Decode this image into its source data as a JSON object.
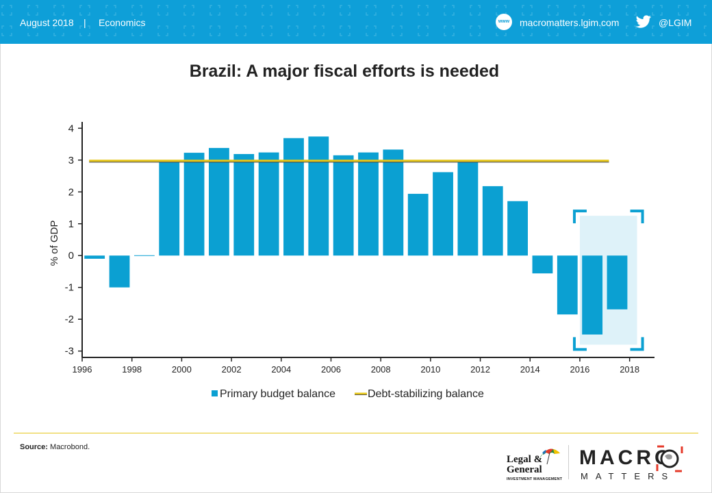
{
  "header": {
    "date": "August 2018",
    "separator": "|",
    "category": "Economics",
    "www_badge": "www",
    "website": "macromatters.lgim.com",
    "twitter_handle": "@LGIM",
    "background_color": "#0e9fd8"
  },
  "title": "Brazil: A major fiscal efforts is needed",
  "footer": {
    "source_label": "Source:",
    "source_text": "Macrobond.",
    "brand_line1": "Legal &",
    "brand_line2": "General",
    "brand_sub": "INVESTMENT MANAGEMENT",
    "macro_word": "MACRO",
    "matters_word": "MATTERS",
    "rule_color": "#e6c619"
  },
  "chart_data": {
    "type": "bar",
    "ylabel": "% of GDP",
    "xlabel": "",
    "ylim": [
      -3.2,
      4.2
    ],
    "xlim": [
      1996,
      2019
    ],
    "y_ticks": [
      4,
      3,
      2,
      1,
      0,
      -1,
      -2,
      -3
    ],
    "x_ticks": [
      1996,
      1998,
      2000,
      2002,
      2004,
      2006,
      2008,
      2010,
      2012,
      2014,
      2016,
      2018
    ],
    "series": [
      {
        "name": "Primary budget balance",
        "color": "#0ba0d2",
        "x": [
          1996.5,
          1997.5,
          1998.5,
          1999.5,
          2000.5,
          2001.5,
          2002.5,
          2003.5,
          2004.5,
          2005.5,
          2006.5,
          2007.5,
          2008.5,
          2009.5,
          2010.5,
          2011.5,
          2012.5,
          2013.5,
          2014.5,
          2015.5,
          2016.5,
          2017.5
        ],
        "values": [
          -0.1,
          -1.0,
          0.01,
          2.93,
          3.23,
          3.38,
          3.19,
          3.24,
          3.69,
          3.74,
          3.15,
          3.24,
          3.33,
          1.94,
          2.62,
          2.94,
          2.18,
          1.71,
          -0.56,
          -1.85,
          -2.48,
          -1.69
        ]
      },
      {
        "name": "Debt-stabilizing balance",
        "color": "#e6c619",
        "x": [
          1996.5,
          2017.5
        ],
        "values": [
          2.98,
          2.98
        ]
      }
    ],
    "highlight_range": {
      "x": [
        2016,
        2018.3
      ],
      "y": [
        -2.8,
        1.25
      ]
    },
    "legend": "bottom-center",
    "grid": false
  }
}
